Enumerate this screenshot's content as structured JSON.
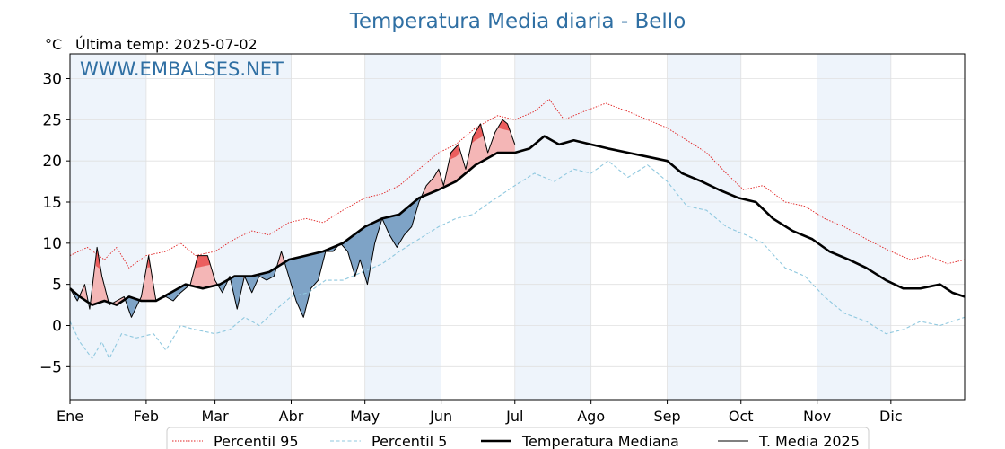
{
  "title": "Temperatura Media diaria - Bello",
  "unit_label": "°C",
  "last_temp": "Última temp: 2025-07-02",
  "watermark": "WWW.EMBALSES.NET",
  "colors": {
    "title": "#2f6fa3",
    "p95": "#e02020",
    "p5": "#8fc8df",
    "median": "#000000",
    "year": "#000000",
    "above_fill": "#f4b6b6",
    "above_strong": "#e84848",
    "below_fill": "#7ea3c6",
    "month_shade": "#eef4fb",
    "grid": "#e0e0e0"
  },
  "chart_data": {
    "type": "line",
    "ylim": [
      -9,
      33
    ],
    "xlim": [
      1,
      365
    ],
    "grid": true,
    "legend_placement": "bottom",
    "yticks": [
      -5,
      0,
      5,
      10,
      15,
      20,
      25,
      30
    ],
    "ytick_labels": [
      "−5",
      "0",
      "5",
      "10",
      "15",
      "20",
      "25",
      "30"
    ],
    "months": [
      "Ene",
      "Feb",
      "Mar",
      "Abr",
      "May",
      "Jun",
      "Jul",
      "Ago",
      "Sep",
      "Oct",
      "Nov",
      "Dic"
    ],
    "month_start_days": [
      1,
      32,
      60,
      91,
      121,
      152,
      182,
      213,
      244,
      274,
      305,
      335
    ],
    "shaded_months": [
      0,
      2,
      4,
      6,
      8,
      10
    ],
    "series": [
      {
        "name": "Percentil 95",
        "style": "dotted",
        "points": [
          [
            1,
            8.5
          ],
          [
            8,
            9.5
          ],
          [
            15,
            8
          ],
          [
            20,
            9.5
          ],
          [
            25,
            7
          ],
          [
            32,
            8.5
          ],
          [
            40,
            9
          ],
          [
            46,
            10
          ],
          [
            52,
            8.5
          ],
          [
            60,
            9
          ],
          [
            68,
            10.5
          ],
          [
            75,
            11.5
          ],
          [
            82,
            11
          ],
          [
            90,
            12.5
          ],
          [
            97,
            13
          ],
          [
            104,
            12.5
          ],
          [
            112,
            14
          ],
          [
            121,
            15.5
          ],
          [
            128,
            16
          ],
          [
            135,
            17
          ],
          [
            143,
            19
          ],
          [
            151,
            21
          ],
          [
            158,
            22
          ],
          [
            166,
            24
          ],
          [
            175,
            25.5
          ],
          [
            182,
            25
          ],
          [
            190,
            26
          ],
          [
            196,
            27.5
          ],
          [
            202,
            25
          ],
          [
            210,
            26
          ],
          [
            219,
            27
          ],
          [
            228,
            26
          ],
          [
            236,
            25
          ],
          [
            244,
            24
          ],
          [
            252,
            22.5
          ],
          [
            260,
            21
          ],
          [
            268,
            18.5
          ],
          [
            275,
            16.5
          ],
          [
            283,
            17
          ],
          [
            292,
            15
          ],
          [
            300,
            14.5
          ],
          [
            308,
            13
          ],
          [
            316,
            12
          ],
          [
            325,
            10.5
          ],
          [
            335,
            9
          ],
          [
            343,
            8
          ],
          [
            350,
            8.5
          ],
          [
            358,
            7.5
          ],
          [
            365,
            8
          ]
        ]
      },
      {
        "name": "Percentil 5",
        "style": "dashed",
        "points": [
          [
            1,
            0.5
          ],
          [
            5,
            -2
          ],
          [
            10,
            -4
          ],
          [
            14,
            -2
          ],
          [
            17,
            -4
          ],
          [
            22,
            -1
          ],
          [
            28,
            -1.5
          ],
          [
            35,
            -1
          ],
          [
            40,
            -3
          ],
          [
            46,
            0
          ],
          [
            52,
            -0.5
          ],
          [
            60,
            -1
          ],
          [
            66,
            -0.5
          ],
          [
            72,
            1
          ],
          [
            78,
            0
          ],
          [
            85,
            2
          ],
          [
            91,
            3.5
          ],
          [
            98,
            4
          ],
          [
            105,
            5.5
          ],
          [
            112,
            5.5
          ],
          [
            120,
            6.5
          ],
          [
            128,
            7.5
          ],
          [
            135,
            9
          ],
          [
            143,
            10.5
          ],
          [
            151,
            12
          ],
          [
            158,
            13
          ],
          [
            165,
            13.5
          ],
          [
            172,
            15
          ],
          [
            182,
            17
          ],
          [
            190,
            18.5
          ],
          [
            198,
            17.5
          ],
          [
            206,
            19
          ],
          [
            213,
            18.5
          ],
          [
            220,
            20
          ],
          [
            228,
            18
          ],
          [
            236,
            19.5
          ],
          [
            244,
            17.5
          ],
          [
            252,
            14.5
          ],
          [
            260,
            14
          ],
          [
            268,
            12
          ],
          [
            276,
            11
          ],
          [
            283,
            10
          ],
          [
            292,
            7
          ],
          [
            300,
            6
          ],
          [
            308,
            3.5
          ],
          [
            316,
            1.5
          ],
          [
            325,
            0.5
          ],
          [
            333,
            -1
          ],
          [
            340,
            -0.5
          ],
          [
            347,
            0.5
          ],
          [
            355,
            0
          ],
          [
            365,
            1
          ]
        ]
      },
      {
        "name": "Temperatura Mediana",
        "style": "solid-thick",
        "points": [
          [
            1,
            4.5
          ],
          [
            5,
            3.5
          ],
          [
            10,
            2.5
          ],
          [
            15,
            3
          ],
          [
            20,
            2.5
          ],
          [
            25,
            3.5
          ],
          [
            30,
            3
          ],
          [
            36,
            3
          ],
          [
            42,
            4
          ],
          [
            48,
            5
          ],
          [
            55,
            4.5
          ],
          [
            62,
            5
          ],
          [
            68,
            6
          ],
          [
            75,
            6
          ],
          [
            82,
            6.5
          ],
          [
            90,
            8
          ],
          [
            97,
            8.5
          ],
          [
            104,
            9
          ],
          [
            112,
            10
          ],
          [
            121,
            12
          ],
          [
            128,
            13
          ],
          [
            135,
            13.5
          ],
          [
            143,
            15.5
          ],
          [
            151,
            16.5
          ],
          [
            158,
            17.5
          ],
          [
            166,
            19.5
          ],
          [
            175,
            21
          ],
          [
            182,
            21
          ],
          [
            188,
            21.5
          ],
          [
            194,
            23
          ],
          [
            200,
            22
          ],
          [
            206,
            22.5
          ],
          [
            213,
            22
          ],
          [
            220,
            21.5
          ],
          [
            228,
            21
          ],
          [
            236,
            20.5
          ],
          [
            244,
            20
          ],
          [
            250,
            18.5
          ],
          [
            258,
            17.5
          ],
          [
            265,
            16.5
          ],
          [
            273,
            15.5
          ],
          [
            280,
            15
          ],
          [
            287,
            13
          ],
          [
            295,
            11.5
          ],
          [
            303,
            10.5
          ],
          [
            310,
            9
          ],
          [
            318,
            8
          ],
          [
            325,
            7
          ],
          [
            333,
            5.5
          ],
          [
            340,
            4.5
          ],
          [
            347,
            4.5
          ],
          [
            355,
            5
          ],
          [
            360,
            4
          ],
          [
            365,
            3.5
          ]
        ]
      },
      {
        "name": "T. Media 2025",
        "style": "solid-thin",
        "points": [
          [
            1,
            4.5
          ],
          [
            4,
            3
          ],
          [
            7,
            5
          ],
          [
            9,
            2
          ],
          [
            12,
            9.5
          ],
          [
            14,
            6
          ],
          [
            17,
            2.5
          ],
          [
            20,
            3
          ],
          [
            23,
            3.5
          ],
          [
            26,
            1
          ],
          [
            30,
            3.5
          ],
          [
            33,
            8.5
          ],
          [
            36,
            3
          ],
          [
            40,
            3.5
          ],
          [
            43,
            3
          ],
          [
            46,
            4
          ],
          [
            50,
            5
          ],
          [
            53,
            8.5
          ],
          [
            57,
            8.5
          ],
          [
            60,
            5.5
          ],
          [
            63,
            4
          ],
          [
            66,
            6
          ],
          [
            69,
            2
          ],
          [
            72,
            6
          ],
          [
            75,
            4
          ],
          [
            78,
            6
          ],
          [
            81,
            5.5
          ],
          [
            84,
            6
          ],
          [
            87,
            9
          ],
          [
            90,
            6
          ],
          [
            93,
            3
          ],
          [
            96,
            1
          ],
          [
            99,
            4.5
          ],
          [
            102,
            5.5
          ],
          [
            105,
            9
          ],
          [
            108,
            9
          ],
          [
            111,
            10
          ],
          [
            114,
            9
          ],
          [
            117,
            6
          ],
          [
            119,
            8
          ],
          [
            122,
            5
          ],
          [
            125,
            10
          ],
          [
            128,
            13
          ],
          [
            131,
            11
          ],
          [
            134,
            9.5
          ],
          [
            137,
            11
          ],
          [
            140,
            12
          ],
          [
            143,
            15
          ],
          [
            146,
            17
          ],
          [
            149,
            18
          ],
          [
            151,
            19
          ],
          [
            153,
            17
          ],
          [
            156,
            21
          ],
          [
            159,
            22
          ],
          [
            162,
            19
          ],
          [
            165,
            23
          ],
          [
            168,
            24.5
          ],
          [
            171,
            21
          ],
          [
            174,
            23.5
          ],
          [
            177,
            25
          ],
          [
            179,
            24.5
          ],
          [
            182,
            22
          ]
        ]
      }
    ]
  },
  "legend": [
    {
      "label": "Percentil 95",
      "style": "dotted"
    },
    {
      "label": "Percentil 5",
      "style": "dashed"
    },
    {
      "label": "Temperatura Mediana",
      "style": "solid-thick"
    },
    {
      "label": "T. Media 2025",
      "style": "solid-thin"
    }
  ]
}
